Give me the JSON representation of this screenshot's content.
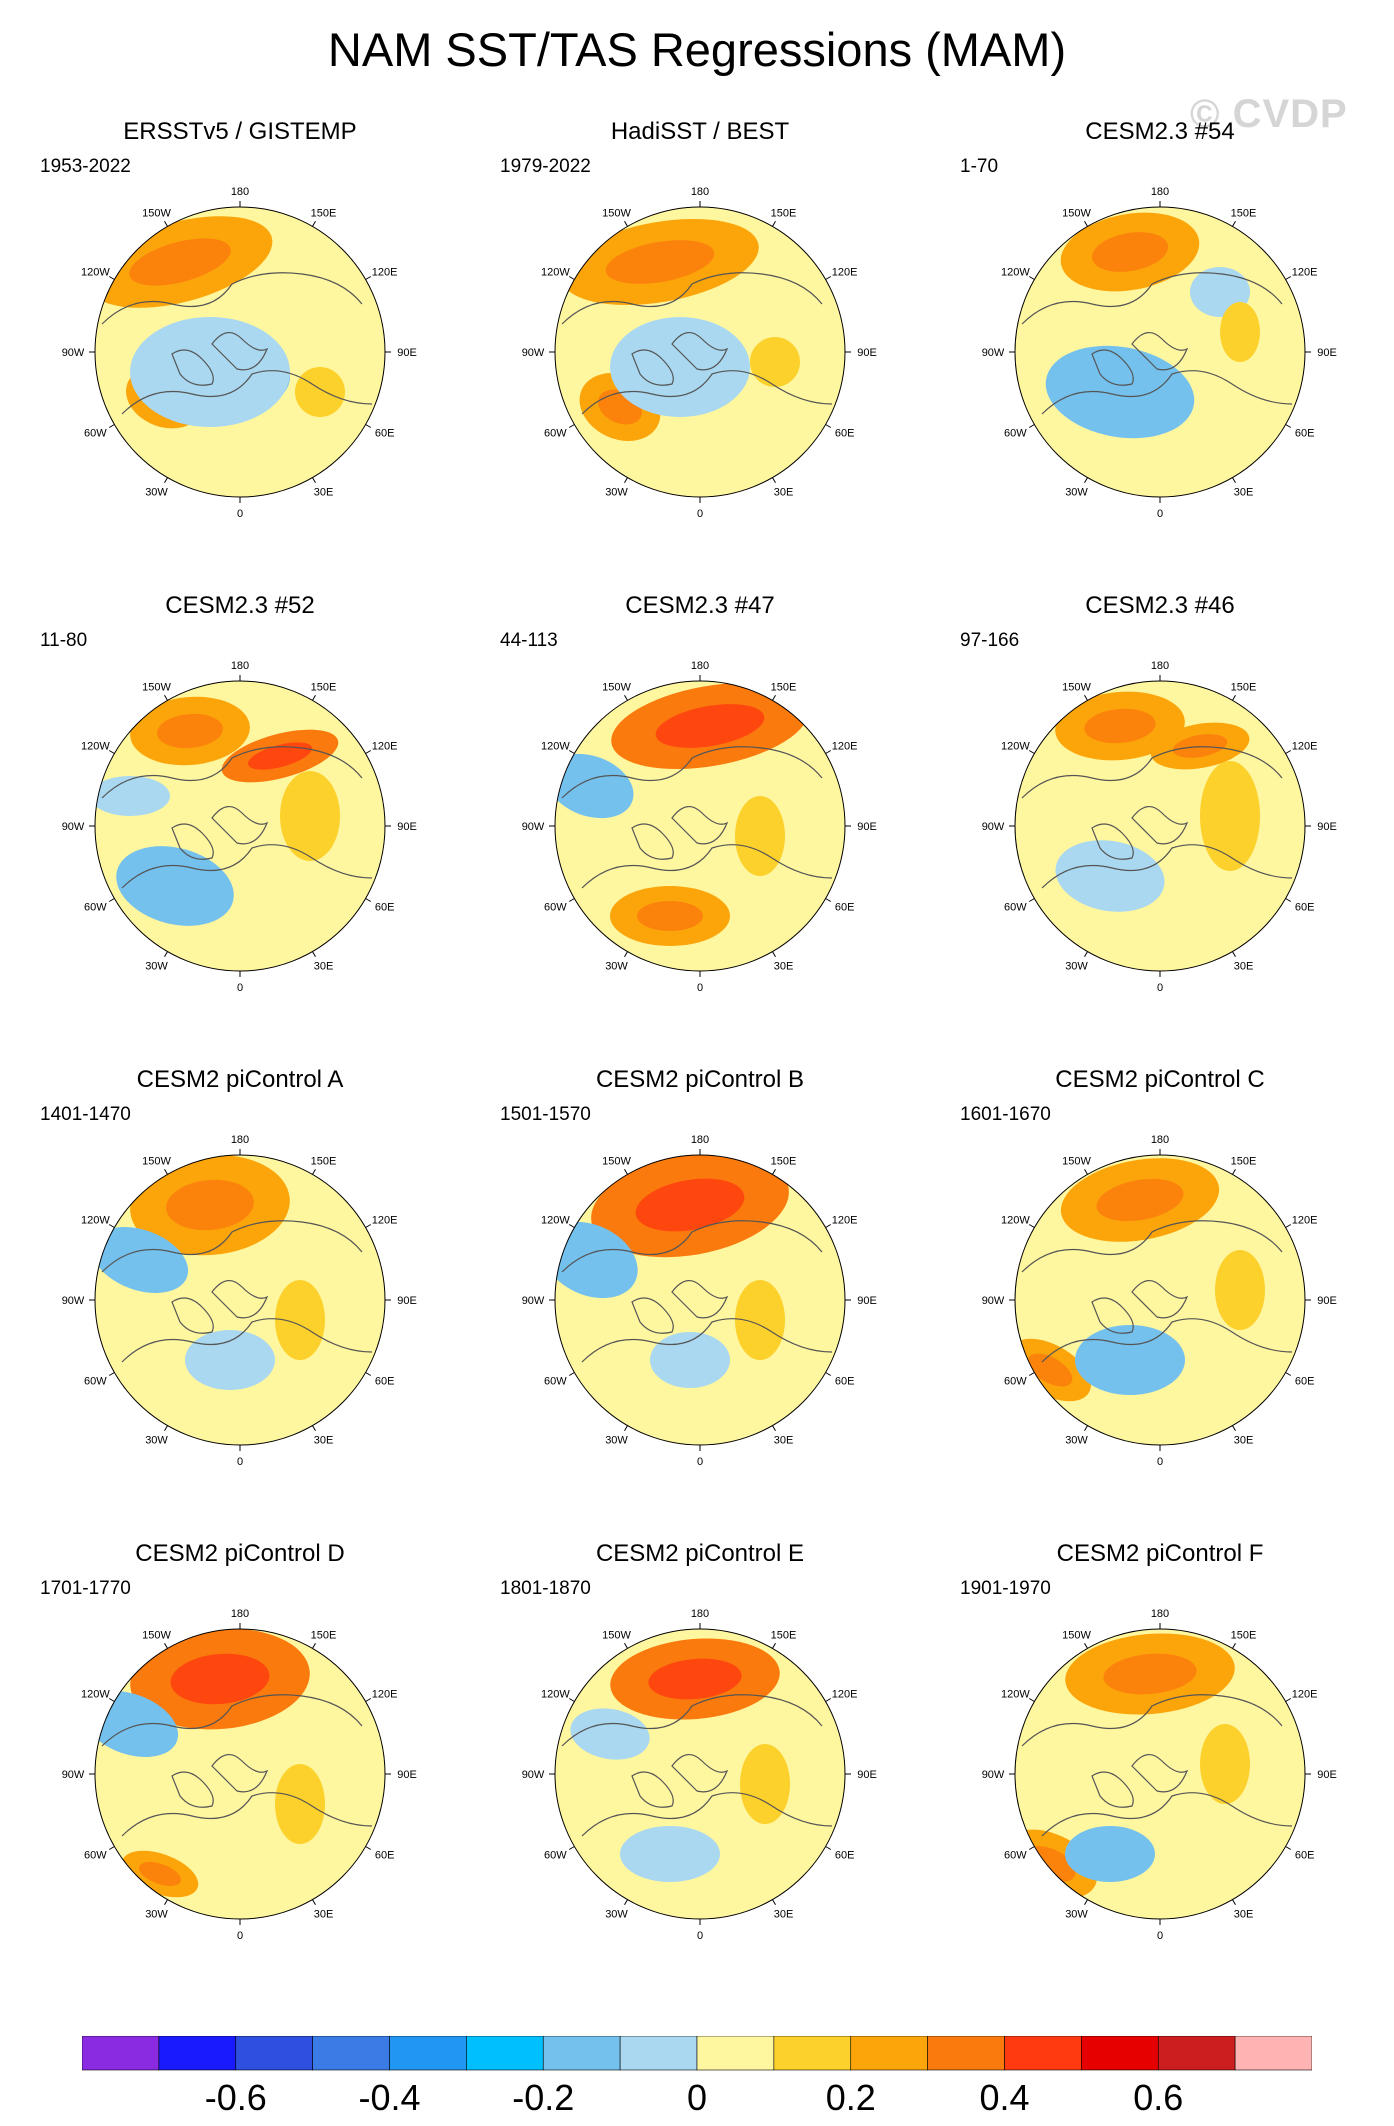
{
  "title": "NAM SST/TAS Regressions (MAM)",
  "watermark": "© CVDP",
  "colors": {
    "ocean_neg1": "#a9d8f0",
    "ocean_neg2": "#74c1ee",
    "neutral_pos": "#fff6a0",
    "pos1": "#fdd12c",
    "pos2": "#fca50a",
    "pos3": "#fa7a0d",
    "land_outline": "#555555"
  },
  "lon_labels": [
    "180",
    "150E",
    "120E",
    "90E",
    "60E",
    "30E",
    "0",
    "30W",
    "60W",
    "90W",
    "120W",
    "150W"
  ],
  "panels": [
    {
      "title": "ERSSTv5 / GISTEMP",
      "years": "1953-2022"
    },
    {
      "title": "HadiSST / BEST",
      "years": "1979-2022"
    },
    {
      "title": "CESM2.3 #54",
      "years": "1-70"
    },
    {
      "title": "CESM2.3 #52",
      "years": "11-80"
    },
    {
      "title": "CESM2.3 #47",
      "years": "44-113"
    },
    {
      "title": "CESM2.3 #46",
      "years": "97-166"
    },
    {
      "title": "CESM2 piControl A",
      "years": "1401-1470"
    },
    {
      "title": "CESM2 piControl B",
      "years": "1501-1570"
    },
    {
      "title": "CESM2 piControl C",
      "years": "1601-1670"
    },
    {
      "title": "CESM2 piControl D",
      "years": "1701-1770"
    },
    {
      "title": "CESM2 piControl E",
      "years": "1801-1870"
    },
    {
      "title": "CESM2 piControl F",
      "years": "1901-1970"
    }
  ],
  "colorbar": {
    "colors": [
      "#8a2be2",
      "#1a1aff",
      "#2e4fe0",
      "#3a7be6",
      "#2196f3",
      "#00bfff",
      "#74c1ee",
      "#a9d8f0",
      "#fff6a0",
      "#fdd12c",
      "#fca50a",
      "#fa7a0d",
      "#ff3a10",
      "#e60000",
      "#cc1e1e",
      "#ffb3b3"
    ],
    "ticks": [
      {
        "label": "-0.6",
        "value": -0.6
      },
      {
        "label": "-0.4",
        "value": -0.4
      },
      {
        "label": "-0.2",
        "value": -0.2
      },
      {
        "label": "0",
        "value": 0
      },
      {
        "label": "0.2",
        "value": 0.2
      },
      {
        "label": "0.4",
        "value": 0.4
      },
      {
        "label": "0.6",
        "value": 0.6
      }
    ],
    "min": -0.8,
    "max": 0.8
  }
}
